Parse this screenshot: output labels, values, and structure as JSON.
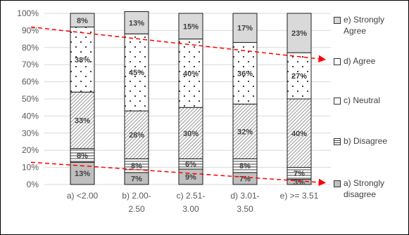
{
  "chart_data": {
    "type": "bar",
    "stacked": true,
    "percent": true,
    "title": "",
    "xlabel": "",
    "ylabel": "",
    "ylim": [
      0,
      100
    ],
    "y_ticks": [
      "0%",
      "10%",
      "20%",
      "30%",
      "40%",
      "50%",
      "60%",
      "70%",
      "80%",
      "90%",
      "100%"
    ],
    "grid": true,
    "legend_position": "right",
    "categories": [
      [
        "a) <2.00"
      ],
      [
        "b) 2.00-",
        "2.50"
      ],
      [
        "c) 2.51-",
        "3.00"
      ],
      [
        "d) 3.01-",
        "3.50"
      ],
      [
        "e) >= 3.51"
      ]
    ],
    "series": [
      {
        "name": "a) Strongly disagree",
        "legend_lines": [
          "a) Strongly",
          "disagree"
        ],
        "values": [
          13,
          7,
          9,
          7,
          3
        ],
        "labels": [
          "13%",
          "7%",
          "9%",
          "7%",
          "3%"
        ],
        "fill": "#bfbfbf",
        "pattern": "solid"
      },
      {
        "name": "b) Disagree",
        "legend_lines": [
          "b) Disagree"
        ],
        "values": [
          8,
          8,
          6,
          8,
          7
        ],
        "labels": [
          "8%",
          "8%",
          "6%",
          "8%",
          "7%"
        ],
        "fill": "#ffffff",
        "pattern": "hlines"
      },
      {
        "name": "c) Neutral",
        "legend_lines": [
          "c) Neutral"
        ],
        "values": [
          33,
          28,
          30,
          32,
          40
        ],
        "labels": [
          "33%",
          "28%",
          "30%",
          "32%",
          "40%"
        ],
        "fill": "#ffffff",
        "pattern": "diagonal"
      },
      {
        "name": "d) Agree",
        "legend_lines": [
          "d) Agree"
        ],
        "values": [
          38,
          45,
          40,
          36,
          27
        ],
        "labels": [
          "38%",
          "45%",
          "40%",
          "36%",
          "27%"
        ],
        "fill": "#ffffff",
        "pattern": "dots"
      },
      {
        "name": "e) Strongly Agree",
        "legend_lines": [
          "e) Strongly",
          "Agree"
        ],
        "values": [
          8,
          13,
          15,
          17,
          23
        ],
        "labels": [
          "8%",
          "13%",
          "15%",
          "17%",
          "23%"
        ],
        "fill": "#d9d9d9",
        "pattern": "solid"
      }
    ],
    "trendlines": [
      {
        "color": "#ff0000",
        "style": "dashed",
        "from": {
          "category": 0,
          "y": 92
        },
        "to": {
          "category": 4,
          "y": 73
        }
      },
      {
        "color": "#ff0000",
        "style": "dashed",
        "from": {
          "category": 0,
          "y": 13
        },
        "to": {
          "category": 4,
          "y": 1
        }
      }
    ]
  }
}
